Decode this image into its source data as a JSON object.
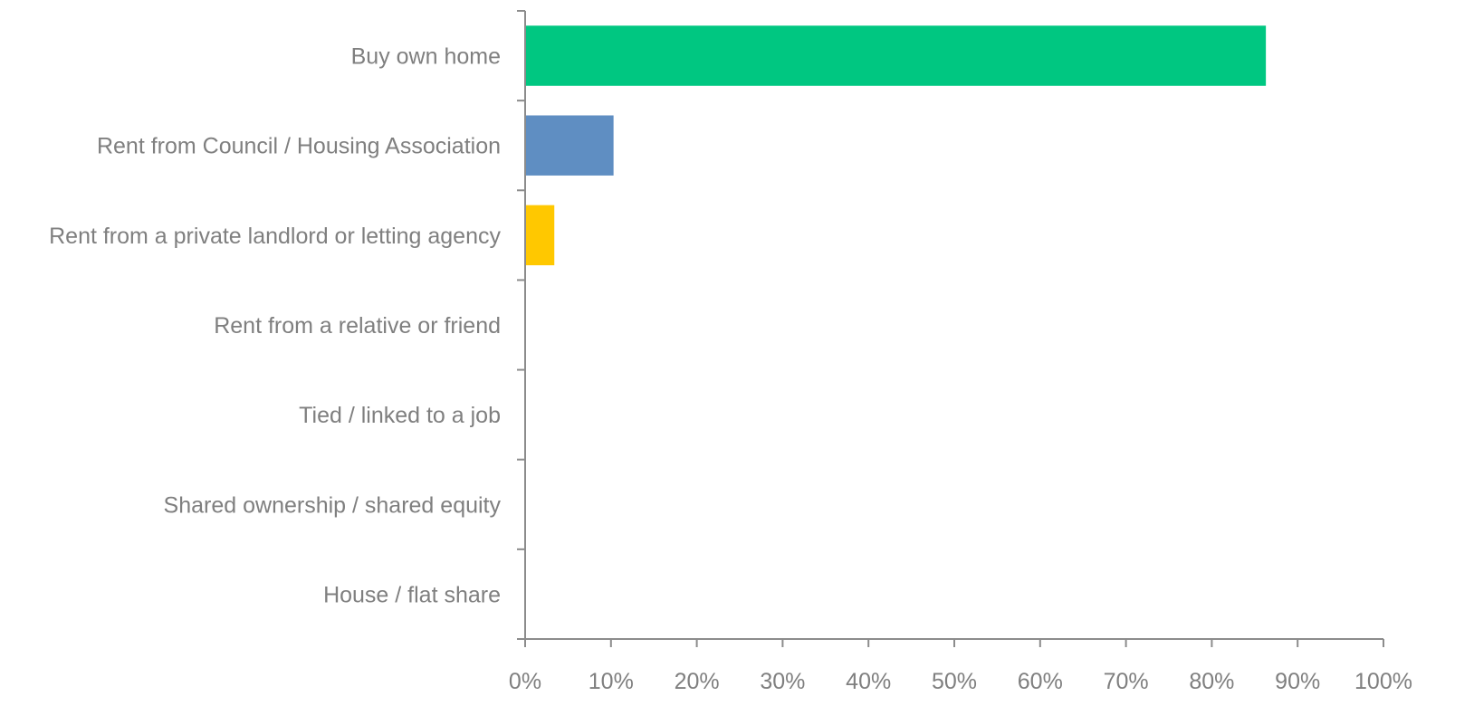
{
  "chart_data": {
    "type": "bar",
    "orientation": "horizontal",
    "title": "",
    "xlabel": "",
    "ylabel": "",
    "categories": [
      "Buy own home",
      "Rent from Council / Housing Association",
      "Rent from a private landlord or letting agency",
      "Rent from a relative or friend",
      "Tied / linked to a job",
      "Shared ownership / shared equity",
      "House / flat share"
    ],
    "values": [
      86.3,
      10.3,
      3.4,
      0,
      0,
      0,
      0
    ],
    "colors": [
      "#00c781",
      "#5f8ec2",
      "#ffc800",
      "#00c781",
      "#00c781",
      "#00c781",
      "#00c781"
    ],
    "xlim": [
      0,
      100
    ],
    "xticks": [
      "0%",
      "10%",
      "20%",
      "30%",
      "40%",
      "50%",
      "60%",
      "70%",
      "80%",
      "90%",
      "100%"
    ],
    "grid": false,
    "legend": "none",
    "axis_color": "#8c8c8c",
    "text_color": "#7f7f7f"
  }
}
